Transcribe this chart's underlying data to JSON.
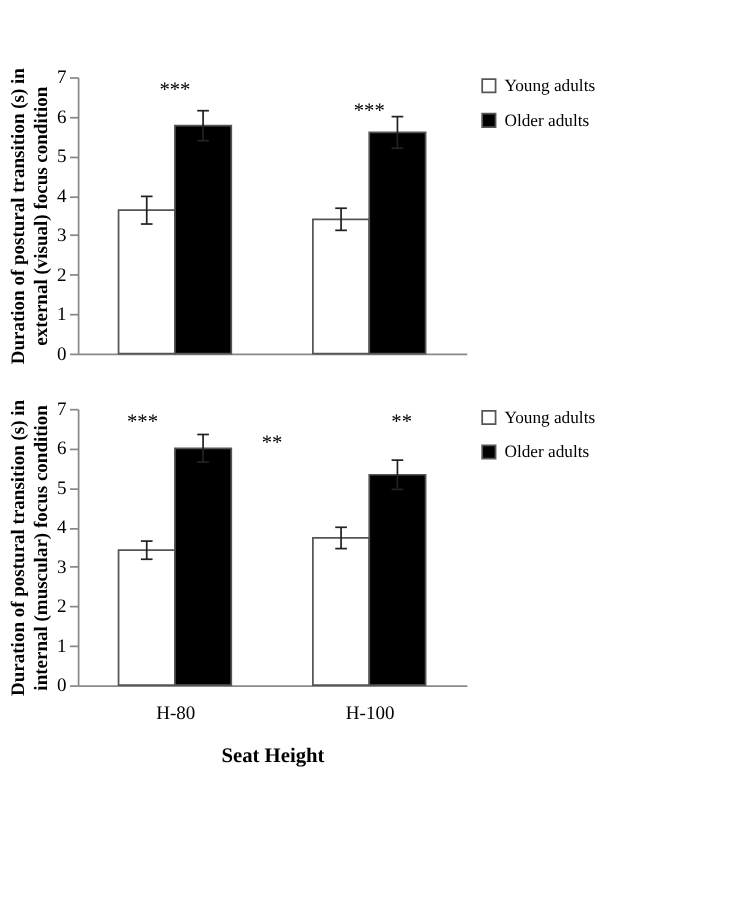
{
  "chart_data": [
    {
      "type": "bar",
      "ylabel": "Duration of postural transition (s) in external (visual) focus condition",
      "categories": [
        null,
        null
      ],
      "ylim": [
        0,
        7
      ],
      "yticks": [
        0,
        1,
        2,
        3,
        4,
        5,
        6,
        7
      ],
      "tick_labels": "y",
      "legend": "top right",
      "grid": false,
      "series": [
        {
          "name": "Young adults",
          "color": "#ffffff",
          "values": [
            3.63,
            3.4
          ],
          "errors": [
            0.35,
            0.28
          ]
        },
        {
          "name": "Older adults",
          "color": "#000000",
          "values": [
            5.77,
            5.6
          ],
          "errors": [
            0.38,
            0.4
          ]
        }
      ],
      "annotations": [
        "***",
        "***"
      ]
    },
    {
      "type": "bar",
      "ylabel": "Duration of postural transition (s) in internal (muscular) focus condition",
      "xlabel": "Seat Height",
      "categories": [
        "H-80",
        "H-100"
      ],
      "ylim": [
        0,
        7
      ],
      "yticks": [
        0,
        1,
        2,
        3,
        4,
        5,
        6,
        7
      ],
      "legend": "top right",
      "grid": false,
      "series": [
        {
          "name": "Young adults",
          "color": "#ffffff",
          "values": [
            3.42,
            3.73
          ],
          "errors": [
            0.23,
            0.27
          ]
        },
        {
          "name": "Older adults",
          "color": "#000000",
          "values": [
            6.0,
            5.33
          ],
          "errors": [
            0.35,
            0.37
          ]
        }
      ],
      "annotations": [
        "***",
        "**",
        "**"
      ]
    }
  ]
}
